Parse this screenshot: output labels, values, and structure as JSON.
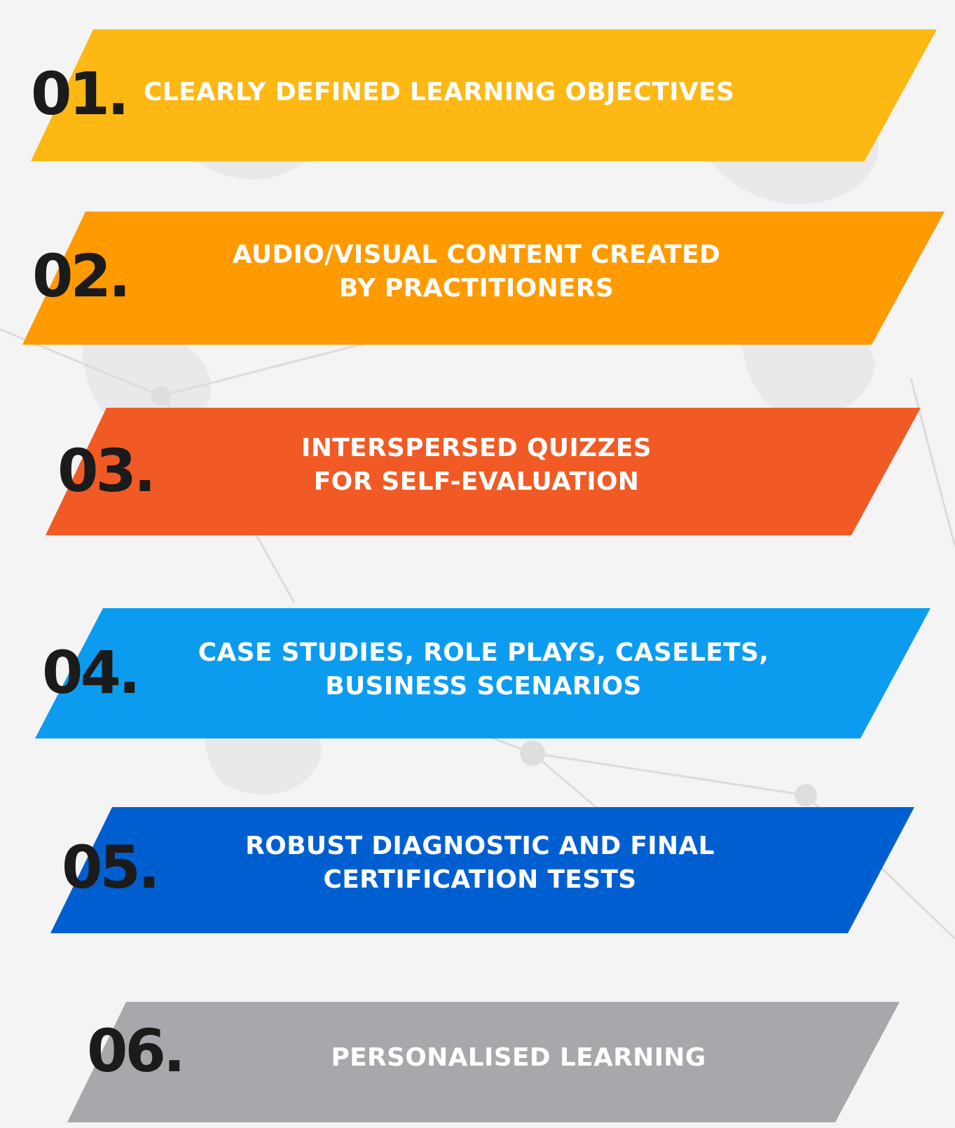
{
  "items": [
    {
      "number": "01.",
      "lines": [
        "CLEARLY DEFINED LEARNING OBJECTIVES"
      ],
      "color": "#FDB813"
    },
    {
      "number": "02.",
      "lines": [
        "AUDIO/VISUAL CONTENT CREATED",
        "BY PRACTITIONERS"
      ],
      "color": "#FF9A00"
    },
    {
      "number": "03.",
      "lines": [
        "INTERSPERSED QUIZZES",
        "FOR SELF-EVALUATION"
      ],
      "color": "#F15A24"
    },
    {
      "number": "04.",
      "lines": [
        "CASE STUDIES, ROLE PLAYS, CASELETS,",
        "BUSINESS SCENARIOS"
      ],
      "color": "#0B9CF0"
    },
    {
      "number": "05.",
      "lines": [
        "ROBUST DIAGNOSTIC AND FINAL",
        "CERTIFICATION TESTS"
      ],
      "color": "#005FD0"
    },
    {
      "number": "06.",
      "lines": [
        "PERSONALISED LEARNING"
      ],
      "color": "#A6A8AB"
    }
  ]
}
